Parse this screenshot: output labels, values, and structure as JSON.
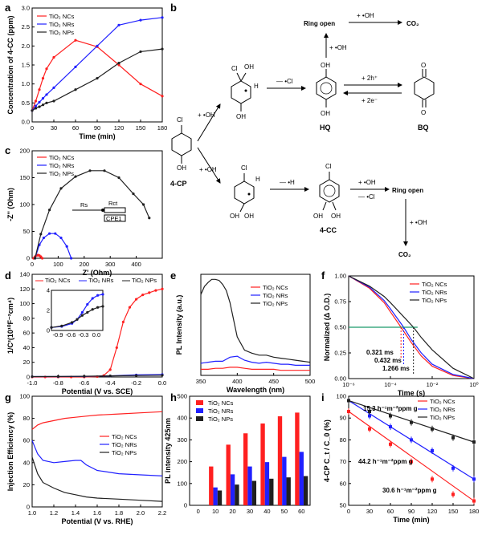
{
  "panels": {
    "a": {
      "letter": "a"
    },
    "b": {
      "letter": "b"
    },
    "c": {
      "letter": "c"
    },
    "d": {
      "letter": "d"
    },
    "e": {
      "letter": "e"
    },
    "f": {
      "letter": "f"
    },
    "g": {
      "letter": "g"
    },
    "h": {
      "letter": "h"
    },
    "i": {
      "letter": "i"
    }
  },
  "colors": {
    "ncs": "#ff2020",
    "nrs": "#2020ff",
    "nps": "#202020",
    "green": "#1a9a6a"
  },
  "scheme": {
    "reagent_oh": "+ •OH",
    "minus_cl": "— •Cl",
    "minus_h": "— •H",
    "ring_open_top": "Ring open",
    "ring_open_bottom": "Ring open",
    "co2_top": "CO₂",
    "co2_bottom": "CO₂",
    "hq": "HQ",
    "bq": "BQ",
    "cp": "4-CP",
    "cc": "4-CC",
    "plus_2h": "+ 2h⁺",
    "plus_2e": "+ 2e⁻",
    "cl": "Cl",
    "oh": "OH",
    "h": "H",
    "o": "O",
    "dot_oh": "•OH",
    "dot_cl": "•Cl"
  },
  "chart_data": [
    {
      "panel": "a",
      "type": "line",
      "xlabel": "Time (min)",
      "ylabel": "Concentration of 4-CC (ppm)",
      "xlim": [
        0,
        180
      ],
      "ylim": [
        0,
        3.0
      ],
      "xticks": [
        "0",
        "30",
        "60",
        "90",
        "120",
        "150",
        "180"
      ],
      "yticks": [
        "0.0",
        "0.5",
        "1.0",
        "1.5",
        "2.0",
        "2.5",
        "3.0"
      ],
      "legend": "top-left",
      "series": [
        {
          "name": "TiO₂ NCs",
          "color": "#ff2020",
          "x": [
            0,
            5,
            10,
            15,
            20,
            30,
            60,
            90,
            120,
            150,
            180
          ],
          "y": [
            0.3,
            0.55,
            0.85,
            1.15,
            1.4,
            1.7,
            2.15,
            1.98,
            1.5,
            1.0,
            0.68
          ]
        },
        {
          "name": "TiO₂ NRs",
          "color": "#2020ff",
          "x": [
            0,
            5,
            10,
            15,
            20,
            30,
            60,
            90,
            120,
            150,
            180
          ],
          "y": [
            0.3,
            0.42,
            0.52,
            0.62,
            0.72,
            0.9,
            1.45,
            2.0,
            2.55,
            2.68,
            2.75
          ]
        },
        {
          "name": "TiO₂ NPs",
          "color": "#202020",
          "x": [
            0,
            5,
            10,
            15,
            20,
            30,
            60,
            90,
            120,
            150,
            180
          ],
          "y": [
            0.3,
            0.36,
            0.4,
            0.45,
            0.5,
            0.55,
            0.85,
            1.15,
            1.55,
            1.85,
            1.92
          ]
        }
      ]
    },
    {
      "panel": "c",
      "type": "line",
      "xlabel": "Z' (Ohm)",
      "ylabel": "-Z'' (Ohm)",
      "xlim": [
        0,
        450
      ],
      "ylim": [
        0,
        200
      ],
      "xticks": [
        "0",
        "100",
        "200",
        "300",
        "400"
      ],
      "yticks": [
        "0",
        "50",
        "100",
        "150",
        "200"
      ],
      "legend": "top-left",
      "circuit": {
        "rs": "Rs",
        "rct": "Rct",
        "cpe": "CPE1"
      },
      "series": [
        {
          "name": "TiO₂ NCs",
          "color": "#ff2020",
          "x": [
            5,
            10,
            15,
            20,
            25,
            30,
            35
          ],
          "y": [
            0,
            3,
            5,
            6,
            5,
            3,
            0
          ]
        },
        {
          "name": "TiO₂ NRs",
          "color": "#2020ff",
          "x": [
            10,
            25,
            40,
            60,
            80,
            100,
            120,
            135
          ],
          "y": [
            0,
            25,
            38,
            46,
            46,
            38,
            22,
            0
          ]
        },
        {
          "name": "TiO₂ NPs",
          "color": "#202020",
          "x": [
            10,
            30,
            60,
            100,
            150,
            200,
            250,
            300,
            350,
            385,
            405
          ],
          "y": [
            0,
            45,
            90,
            130,
            152,
            163,
            163,
            150,
            120,
            100,
            75
          ]
        }
      ]
    },
    {
      "panel": "d",
      "type": "line",
      "xlabel": "Potential (V vs. SCE)",
      "ylabel": "1/C²(10¹⁰F⁻²cm⁴)",
      "xlim": [
        -1.0,
        0.0
      ],
      "ylim": [
        0,
        140
      ],
      "xticks": [
        "-1.0",
        "-0.8",
        "-0.6",
        "-0.4",
        "-0.2",
        "0.0"
      ],
      "yticks": [
        "0",
        "20",
        "40",
        "60",
        "80",
        "100",
        "120",
        "140"
      ],
      "legend": "top",
      "series": [
        {
          "name": "TiO₂ NCs",
          "color": "#ff2020",
          "x": [
            -1.0,
            -0.9,
            -0.8,
            -0.7,
            -0.6,
            -0.5,
            -0.45,
            -0.4,
            -0.35,
            -0.3,
            -0.25,
            -0.2,
            -0.15,
            -0.1,
            -0.05,
            0.0
          ],
          "y": [
            0,
            0,
            0,
            0,
            0,
            0.5,
            2,
            10,
            40,
            75,
            95,
            106,
            112,
            115,
            118,
            120
          ]
        },
        {
          "name": "TiO₂ NRs",
          "color": "#2020ff",
          "x": [
            -1.0,
            -0.8,
            -0.6,
            -0.4,
            -0.2,
            0.0
          ],
          "y": [
            0.5,
            0.6,
            0.8,
            1.5,
            2.8,
            3.3
          ]
        },
        {
          "name": "TiO₂ NPs",
          "color": "#202020",
          "x": [
            -1.0,
            -0.8,
            -0.6,
            -0.4,
            -0.2,
            0.0
          ],
          "y": [
            0.5,
            0.7,
            1.0,
            1.5,
            2.0,
            2.4
          ]
        }
      ],
      "inset": {
        "xlim": [
          -1.0,
          0.0
        ],
        "ylim": [
          0,
          4
        ],
        "xticks": [
          "-0.9",
          "-0.6",
          "-0.3",
          "0.0"
        ],
        "yticks": [
          "0",
          "2",
          "4"
        ],
        "series": [
          {
            "color": "#2020ff",
            "x": [
              -1.0,
              -0.8,
              -0.6,
              -0.5,
              -0.4,
              -0.3,
              -0.2,
              -0.1,
              0.0
            ],
            "y": [
              0.3,
              0.4,
              0.7,
              1.1,
              1.8,
              2.6,
              3.2,
              3.5,
              3.6
            ]
          },
          {
            "color": "#202020",
            "x": [
              -1.0,
              -0.8,
              -0.6,
              -0.5,
              -0.4,
              -0.3,
              -0.2,
              -0.1,
              0.0
            ],
            "y": [
              0.3,
              0.45,
              0.8,
              1.1,
              1.5,
              1.8,
              2.1,
              2.3,
              2.4
            ]
          }
        ]
      }
    },
    {
      "panel": "e",
      "type": "line",
      "xlabel": "Wavelength (nm)",
      "ylabel": "PL Intensity (a.u.)",
      "xlim": [
        350,
        500
      ],
      "xticks": [
        "350",
        "400",
        "450",
        "500"
      ],
      "legend": "top-right",
      "series": [
        {
          "name": "TiO₂ NCs",
          "color": "#ff2020",
          "x": [
            350,
            360,
            370,
            380,
            390,
            400,
            410,
            420,
            430,
            440,
            450,
            460,
            470,
            480,
            490,
            500
          ],
          "y": [
            6,
            6,
            7,
            7,
            8,
            8,
            7,
            6,
            6,
            6,
            6,
            5,
            5,
            5,
            5,
            5
          ]
        },
        {
          "name": "TiO₂ NRs",
          "color": "#2020ff",
          "x": [
            350,
            360,
            370,
            380,
            390,
            400,
            410,
            420,
            430,
            440,
            450,
            460,
            470,
            480,
            490,
            500
          ],
          "y": [
            12,
            13,
            14,
            14,
            18,
            19,
            15,
            13,
            12,
            13,
            12,
            11,
            11,
            10,
            10,
            10
          ]
        },
        {
          "name": "TiO₂ NPs",
          "color": "#202020",
          "x": [
            350,
            355,
            360,
            365,
            370,
            375,
            380,
            385,
            390,
            395,
            400,
            410,
            420,
            430,
            440,
            450,
            460,
            470,
            480,
            490,
            500
          ],
          "y": [
            80,
            88,
            92,
            95,
            95,
            94,
            90,
            84,
            72,
            55,
            38,
            25,
            22,
            20,
            20,
            18,
            17,
            16,
            15,
            14,
            13
          ]
        }
      ]
    },
    {
      "panel": "f",
      "type": "line",
      "xlabel": "Time (s)",
      "ylabel": "Normalized (Δ O.D.)",
      "xscale": "log",
      "xlim": [
        1e-06,
        1
      ],
      "ylim": [
        0,
        1.0
      ],
      "xticks": [
        "10⁻⁶",
        "10⁻⁴",
        "10⁻²",
        "10⁰"
      ],
      "yticks": [
        "0.00",
        "0.25",
        "0.50",
        "0.75",
        "1.00"
      ],
      "legend": "top-right",
      "annotations": [
        "0.321 ms",
        "0.432 ms",
        "1.266 ms"
      ],
      "series": [
        {
          "name": "TiO₂ NCs",
          "color": "#ff2020",
          "x": [
            1e-06,
            1e-05,
            5e-05,
            0.0001,
            0.000321,
            0.001,
            0.003,
            0.01,
            0.1,
            1
          ],
          "y": [
            1.0,
            0.88,
            0.74,
            0.65,
            0.5,
            0.35,
            0.22,
            0.12,
            0.03,
            0.0
          ]
        },
        {
          "name": "TiO₂ NRs",
          "color": "#2020ff",
          "x": [
            1e-06,
            1e-05,
            5e-05,
            0.0001,
            0.000432,
            0.001,
            0.003,
            0.01,
            0.1,
            1
          ],
          "y": [
            1.0,
            0.89,
            0.76,
            0.68,
            0.5,
            0.38,
            0.25,
            0.14,
            0.04,
            0.0
          ]
        },
        {
          "name": "TiO₂ NPs",
          "color": "#202020",
          "x": [
            1e-06,
            1e-05,
            5e-05,
            0.0001,
            0.001266,
            0.003,
            0.01,
            0.1,
            1
          ],
          "y": [
            1.0,
            0.9,
            0.8,
            0.74,
            0.5,
            0.4,
            0.28,
            0.1,
            0.0
          ]
        }
      ]
    },
    {
      "panel": "g",
      "type": "line",
      "xlabel": "Potential (V vs. RHE)",
      "ylabel": "Injection Efficiency (%)",
      "xlim": [
        1.0,
        2.2
      ],
      "ylim": [
        0,
        100
      ],
      "xticks": [
        "1.0",
        "1.2",
        "1.4",
        "1.6",
        "1.8",
        "2.0",
        "2.2"
      ],
      "yticks": [
        "0",
        "20",
        "40",
        "60",
        "80",
        "100"
      ],
      "legend": "right",
      "series": [
        {
          "name": "TiO₂ NCs",
          "color": "#ff2020",
          "x": [
            1.0,
            1.05,
            1.1,
            1.2,
            1.3,
            1.4,
            1.5,
            1.6,
            1.8,
            2.0,
            2.2
          ],
          "y": [
            70,
            74,
            76,
            78,
            80,
            81,
            82,
            83,
            84,
            85,
            86
          ]
        },
        {
          "name": "TiO₂ NRs",
          "color": "#2020ff",
          "x": [
            1.0,
            1.05,
            1.1,
            1.2,
            1.3,
            1.4,
            1.45,
            1.5,
            1.6,
            1.8,
            2.0,
            2.2
          ],
          "y": [
            60,
            48,
            42,
            40,
            41,
            42,
            42,
            38,
            33,
            30,
            29,
            28
          ]
        },
        {
          "name": "TiO₂ NPs",
          "color": "#202020",
          "x": [
            1.0,
            1.05,
            1.1,
            1.2,
            1.3,
            1.4,
            1.5,
            1.6,
            1.8,
            2.0,
            2.2
          ],
          "y": [
            45,
            30,
            22,
            17,
            13,
            11,
            9,
            8,
            7,
            6,
            5
          ]
        }
      ]
    },
    {
      "panel": "h",
      "type": "bar",
      "ylabel": "PL intensity 425nm",
      "categories": [
        "0",
        "10",
        "20",
        "30",
        "40",
        "50",
        "60"
      ],
      "ylim": [
        0,
        500
      ],
      "yticks": [
        "0",
        "100",
        "200",
        "300",
        "400",
        "500"
      ],
      "legend": "top-left",
      "series": [
        {
          "name": "TiO₂ NCs",
          "color": "#ff2020",
          "values": [
            0,
            178,
            278,
            330,
            375,
            408,
            425
          ]
        },
        {
          "name": "TiO₂ NRs",
          "color": "#2020ff",
          "values": [
            0,
            82,
            142,
            178,
            198,
            222,
            245
          ]
        },
        {
          "name": "TiO₂ NPs",
          "color": "#202020",
          "values": [
            0,
            68,
            95,
            112,
            122,
            128,
            134
          ]
        }
      ]
    },
    {
      "panel": "i",
      "type": "scatter",
      "xlabel": "Time (min)",
      "ylabel": "4-CP C_t / C_0 (%)",
      "xlim": [
        0,
        180
      ],
      "ylim": [
        50,
        100
      ],
      "xticks": [
        "0",
        "30",
        "60",
        "90",
        "120",
        "150",
        "180"
      ],
      "yticks": [
        "50",
        "60",
        "70",
        "80",
        "90",
        "100"
      ],
      "legend": "top-right",
      "annotations": [
        {
          "text": "15.3 h⁻¹m⁻²ppm g",
          "color": "#202020"
        },
        {
          "text": "44.2 h⁻¹m⁻²ppm g",
          "color": "#ff2020"
        },
        {
          "text": "30.6 h⁻¹m⁻²ppm g",
          "color": "#2020ff"
        }
      ],
      "series": [
        {
          "name": "TiO₂ NCs",
          "color": "#ff2020",
          "x": [
            0,
            30,
            60,
            90,
            120,
            150,
            180
          ],
          "y": [
            93,
            85,
            78,
            70,
            62,
            55,
            52
          ]
        },
        {
          "name": "TiO₂ NRs",
          "color": "#2020ff",
          "x": [
            0,
            30,
            60,
            90,
            120,
            150,
            180
          ],
          "y": [
            98,
            91,
            86,
            80,
            75,
            67,
            62
          ]
        },
        {
          "name": "TiO₂ NPs",
          "color": "#202020",
          "x": [
            0,
            30,
            60,
            90,
            120,
            150,
            180
          ],
          "y": [
            98,
            93,
            91,
            88,
            85,
            81,
            79
          ]
        }
      ]
    }
  ]
}
